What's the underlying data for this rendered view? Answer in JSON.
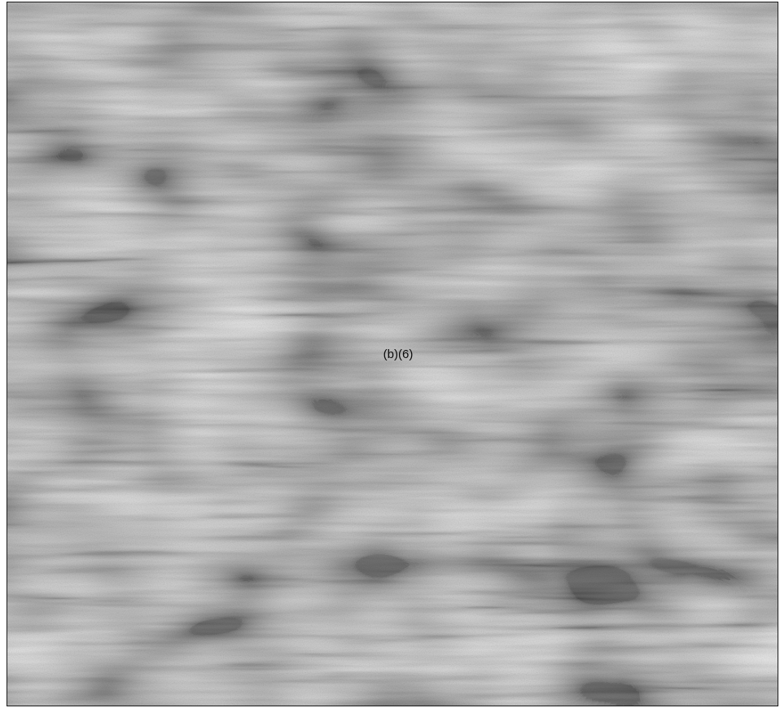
{
  "redaction": {
    "exemption_code": "(b)(6)",
    "fill_color": "#c4c4c4",
    "border_color": "#1a1a1a",
    "text_color": "#0c0c0c"
  }
}
